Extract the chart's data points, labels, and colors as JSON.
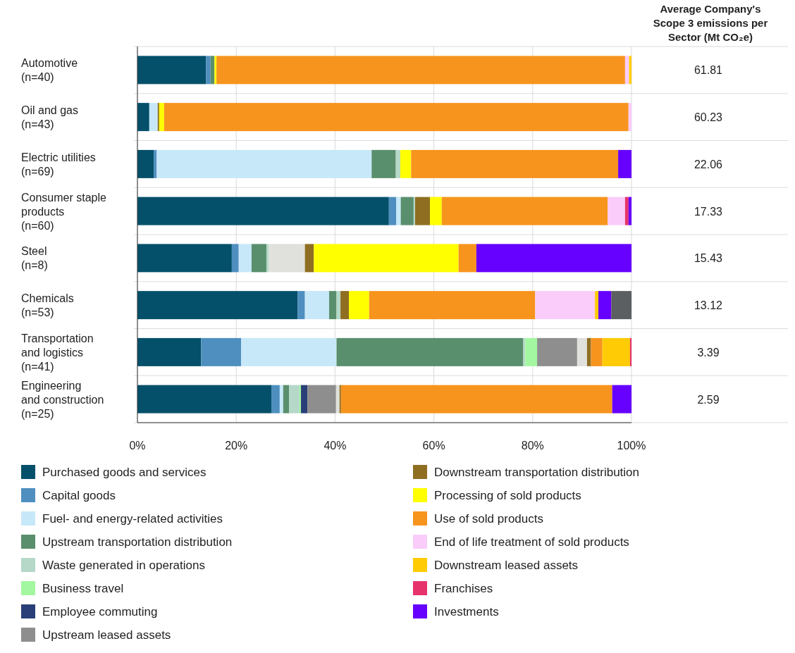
{
  "chart_data": {
    "type": "bar",
    "orientation": "horizontal",
    "stacked": true,
    "categories": [
      "Automotive\n(n=40)",
      "Oil and gas\n(n=43)",
      "Electric utilities\n(n=69)",
      "Consumer staple\nproducts\n(n=60)",
      "Steel\n(n=8)",
      "Chemicals\n(n=53)",
      "Transportation\nand logistics\n(n=41)",
      "Engineering\nand construction\n(n=25)"
    ],
    "series": [
      {
        "name": "Purchased goods and services",
        "color": "#04506a",
        "values": [
          13.9,
          2.4,
          3.3,
          50.9,
          19.1,
          32.4,
          12.9,
          27.1
        ]
      },
      {
        "name": "Capital goods",
        "color": "#4f8fbf",
        "values": [
          0.9,
          0,
          0.6,
          1.5,
          1.4,
          1.5,
          8.1,
          1.7
        ]
      },
      {
        "name": "Fuel- and energy-related activities",
        "color": "#c7e8f8",
        "values": [
          null,
          1.7,
          43.5,
          0.9,
          2.6,
          4.9,
          19.3,
          0.7
        ]
      },
      {
        "name": "Upstream transportation distribution",
        "color": "#5a8f6d",
        "values": [
          0.8,
          0,
          4.9,
          2.6,
          3.0,
          1.5,
          37.8,
          1.2
        ]
      },
      {
        "name": "Waste generated in operations",
        "color": "#b5d8c8",
        "values": [
          null,
          0,
          0.9,
          0.3,
          0.5,
          0.8,
          0.4,
          2.1
        ]
      },
      {
        "name": "Business travel",
        "color": "#a3f7a0",
        "values": [
          0,
          0,
          0,
          0,
          0,
          0,
          2.4,
          0.3
        ]
      },
      {
        "name": "Employee commuting",
        "color": "#2a3f77",
        "values": [
          0,
          0,
          0,
          0,
          0,
          0,
          0,
          1.3
        ]
      },
      {
        "name": "Upstream leased assets",
        "color": "#8e8e8e",
        "values": [
          0,
          0,
          0,
          0,
          0,
          0,
          8.1,
          5.8
        ]
      },
      {
        "color": "#e0e1dc",
        "values": [
          0,
          0,
          0,
          0,
          7.3,
          0,
          2.0,
          0.7
        ]
      },
      {
        "name": "Downstream transportation distribution",
        "color": "#8f6e22",
        "values": [
          0,
          0.3,
          0,
          3.0,
          1.8,
          1.7,
          0.8,
          0.3
        ]
      },
      {
        "name": "Processing of sold products",
        "color": "#ffff00",
        "values": [
          0.4,
          1.0,
          2.2,
          2.4,
          29.3,
          4.1,
          0,
          0
        ]
      },
      {
        "name": "Use of sold products",
        "color": "#f7941e",
        "values": [
          82.7,
          94.0,
          41.9,
          33.6,
          3.6,
          33.6,
          2.3,
          54.9
        ]
      },
      {
        "name": "End of life treatment of sold products",
        "color": "#f9ccf9",
        "values": [
          0.8,
          0.6,
          0,
          3.5,
          0,
          12.1,
          0,
          0
        ]
      },
      {
        "name": "Downstream leased assets",
        "color": "#ffcb05",
        "values": [
          0.5,
          0,
          0,
          0,
          0,
          0.7,
          5.6,
          0
        ]
      },
      {
        "name": "Franchises",
        "color": "#e6336b",
        "values": [
          0,
          0,
          0,
          0.7,
          0,
          0,
          0.3,
          0
        ]
      },
      {
        "name": "Investments",
        "color": "#6600ff",
        "values": [
          0,
          0,
          2.7,
          0.6,
          31.4,
          2.6,
          0,
          3.9
        ]
      },
      {
        "color": "#5c5f61",
        "values": [
          0,
          0,
          0,
          0,
          0,
          4.1,
          0,
          0
        ]
      }
    ],
    "xlim": [
      0,
      100
    ],
    "xticks": [
      {
        "value": 0,
        "label": "0%"
      },
      {
        "value": 20,
        "label": "20%"
      },
      {
        "value": 40,
        "label": "40%"
      },
      {
        "value": 60,
        "label": "60%"
      },
      {
        "value": 80,
        "label": "80%"
      },
      {
        "value": 100,
        "label": "100%"
      }
    ],
    "grid": "x",
    "legend": "bottom",
    "y2label": "Average Company's\nScope 3 emissions per\nSector (Mt CO₂e)",
    "y2_categories": [
      "61.81",
      "60.23",
      "22.06",
      "17.33",
      "15.43",
      "13.12",
      "3.39",
      "2.59"
    ]
  }
}
